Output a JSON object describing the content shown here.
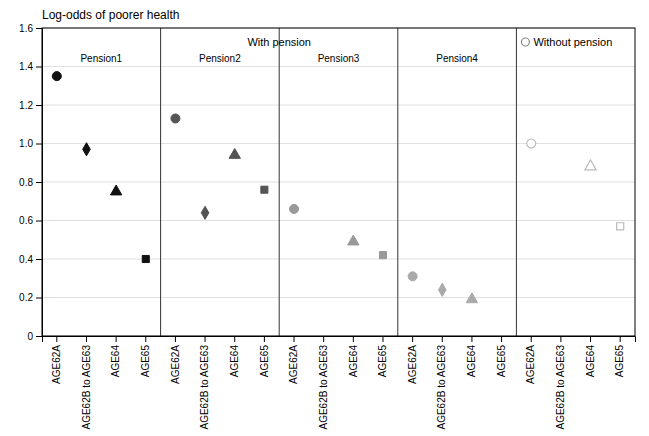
{
  "chart_data": {
    "type": "scatter",
    "title": "Log-odds of poorer health",
    "categories": [
      "AGE62A",
      "AGE62B to AGE63",
      "AGE64",
      "AGE65",
      "AGE62A",
      "AGE62B to AGE63",
      "AGE64",
      "AGE65",
      "AGE62A",
      "AGE62B to AGE63",
      "AGE64",
      "AGE65",
      "AGE62A",
      "AGE62B to AGE63",
      "AGE64",
      "AGE65",
      "AGE62A",
      "AGE62B to AGE63",
      "AGE64",
      "AGE65"
    ],
    "series": [
      {
        "marker": "circle",
        "values": [
          1.35,
          null,
          null,
          null,
          1.13,
          null,
          null,
          null,
          0.66,
          null,
          null,
          null,
          0.31,
          null,
          null,
          null,
          null,
          null,
          null,
          null
        ],
        "colors": [
          "#111111",
          null,
          null,
          null,
          "#555555",
          null,
          null,
          null,
          "#999999",
          null,
          null,
          null,
          "#aaaaaa",
          null,
          null,
          null,
          null,
          null,
          null,
          null
        ]
      },
      {
        "marker": "circle-open",
        "values": [
          null,
          null,
          null,
          null,
          null,
          null,
          null,
          null,
          null,
          null,
          null,
          null,
          null,
          null,
          null,
          null,
          1.0,
          null,
          null,
          null
        ],
        "colors": [
          null,
          null,
          null,
          null,
          null,
          null,
          null,
          null,
          null,
          null,
          null,
          null,
          null,
          null,
          null,
          null,
          "#bbbbbb",
          null,
          null,
          null
        ]
      },
      {
        "marker": "diamond",
        "values": [
          null,
          0.97,
          null,
          null,
          null,
          0.64,
          null,
          null,
          null,
          null,
          null,
          null,
          null,
          0.24,
          null,
          null,
          null,
          null,
          null,
          null
        ],
        "colors": [
          null,
          "#111111",
          null,
          null,
          null,
          "#555555",
          null,
          null,
          null,
          null,
          null,
          null,
          null,
          "#aaaaaa",
          null,
          null,
          null,
          null,
          null,
          null
        ]
      },
      {
        "marker": "triangle",
        "values": [
          null,
          null,
          0.75,
          null,
          null,
          null,
          0.94,
          null,
          null,
          null,
          0.49,
          null,
          null,
          null,
          0.19,
          null,
          null,
          null,
          null,
          null
        ],
        "colors": [
          null,
          null,
          "#111111",
          null,
          null,
          null,
          "#555555",
          null,
          null,
          null,
          "#999999",
          null,
          null,
          null,
          "#aaaaaa",
          null,
          null,
          null,
          null,
          null
        ]
      },
      {
        "marker": "triangle-open",
        "values": [
          null,
          null,
          null,
          null,
          null,
          null,
          null,
          null,
          null,
          null,
          null,
          null,
          null,
          null,
          null,
          null,
          null,
          null,
          0.88,
          null
        ],
        "colors": [
          null,
          null,
          null,
          null,
          null,
          null,
          null,
          null,
          null,
          null,
          null,
          null,
          null,
          null,
          null,
          null,
          null,
          null,
          "#bbbbbb",
          null
        ]
      },
      {
        "marker": "square",
        "values": [
          null,
          null,
          null,
          0.4,
          null,
          null,
          null,
          0.76,
          null,
          null,
          null,
          0.42,
          null,
          null,
          null,
          null,
          null,
          null,
          null,
          null
        ],
        "colors": [
          null,
          null,
          null,
          "#111111",
          null,
          null,
          null,
          "#555555",
          null,
          null,
          null,
          "#999999",
          null,
          null,
          null,
          null,
          null,
          null,
          null,
          null
        ]
      },
      {
        "marker": "square-open",
        "values": [
          null,
          null,
          null,
          null,
          null,
          null,
          null,
          null,
          null,
          null,
          null,
          null,
          null,
          null,
          null,
          null,
          null,
          null,
          null,
          0.57
        ],
        "colors": [
          null,
          null,
          null,
          null,
          null,
          null,
          null,
          null,
          null,
          null,
          null,
          null,
          null,
          null,
          null,
          null,
          null,
          null,
          null,
          "#bbbbbb"
        ]
      }
    ],
    "section_labels": [
      "Pension1",
      "Pension2",
      "Pension3",
      "Pension4"
    ],
    "group_labels": [
      "With pension",
      "Without pension"
    ],
    "ylim": [
      0,
      1.6
    ],
    "yticks": [
      0,
      0.2,
      0.4,
      0.6,
      0.8,
      {
        "value": 1,
        "label": "1.0"
      },
      1.2,
      1.4,
      1.6
    ],
    "grid": true
  }
}
